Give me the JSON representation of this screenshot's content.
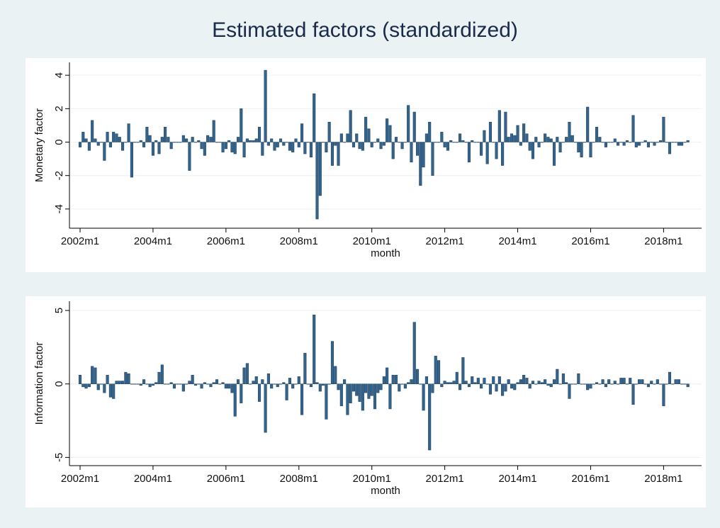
{
  "title": "Estimated factors (standardized)",
  "chart_data": [
    {
      "type": "bar",
      "ylabel": "Monetary factor",
      "xlabel": "month",
      "color": "#34648c",
      "ylim": [
        -5.15,
        4.77
      ],
      "yticks": [
        -4,
        -2,
        0,
        2,
        4
      ],
      "grid": true,
      "categories": [
        "2002m1",
        null,
        null,
        null,
        null,
        null,
        null,
        null,
        null,
        null,
        null,
        null,
        null,
        null,
        null,
        null,
        null,
        null,
        null,
        null,
        null,
        null,
        null,
        null,
        "2004m1",
        null,
        null,
        null,
        null,
        null,
        null,
        null,
        null,
        null,
        null,
        null,
        null,
        null,
        null,
        null,
        null,
        null,
        null,
        null,
        null,
        null,
        null,
        null,
        "2006m1",
        null,
        null,
        null,
        null,
        null,
        null,
        null,
        null,
        null,
        null,
        null,
        null,
        null,
        null,
        null,
        null,
        null,
        null,
        null,
        null,
        null,
        null,
        null,
        "2008m1",
        null,
        null,
        null,
        null,
        null,
        null,
        null,
        null,
        null,
        null,
        null,
        null,
        null,
        null,
        null,
        null,
        null,
        null,
        null,
        null,
        null,
        null,
        null,
        "2010m1",
        null,
        null,
        null,
        null,
        null,
        null,
        null,
        null,
        null,
        null,
        null,
        null,
        null,
        null,
        null,
        null,
        null,
        null,
        null,
        null,
        null,
        null,
        null,
        "2012m1",
        null,
        null,
        null,
        null,
        null,
        null,
        null,
        null,
        null,
        null,
        null,
        null,
        null,
        null,
        null,
        null,
        null,
        null,
        null,
        null,
        null,
        null,
        null,
        "2014m1",
        null,
        null,
        null,
        null,
        null,
        null,
        null,
        null,
        null,
        null,
        null,
        null,
        null,
        null,
        null,
        null,
        null,
        null,
        null,
        null,
        null,
        null,
        null,
        "2016m1",
        null,
        null,
        null,
        null,
        null,
        null,
        null,
        null,
        null,
        null,
        null,
        null,
        null,
        null,
        null,
        null,
        null,
        null,
        null,
        null,
        null,
        null,
        null,
        "2018m1",
        null,
        null,
        null,
        null,
        null,
        null,
        null,
        null
      ],
      "values": [
        -0.3,
        0.6,
        0.2,
        -0.5,
        1.3,
        0.2,
        -0.2,
        0,
        -1.1,
        0.6,
        -0.3,
        0.6,
        0.5,
        0.3,
        -0.5,
        0,
        1.1,
        -2.1,
        0,
        0,
        0.1,
        -0.3,
        0.9,
        0.4,
        -0.8,
        0.1,
        -0.7,
        0.3,
        0.9,
        0.3,
        -0.4,
        0,
        0,
        0,
        0.4,
        0.2,
        -1.7,
        0.3,
        0,
        0.1,
        -0.4,
        -0.8,
        0.4,
        0.3,
        1.3,
        0,
        0,
        -0.6,
        -0.4,
        0.1,
        -0.6,
        -0.7,
        0.3,
        2.0,
        -0.9,
        0.2,
        0.1,
        0.1,
        0.2,
        0.9,
        -0.8,
        4.3,
        -0.2,
        0.2,
        -0.5,
        -0.3,
        0.2,
        -0.2,
        0,
        -0.5,
        -0.6,
        0.2,
        -0.3,
        1.1,
        -0.7,
        0,
        -0.9,
        2.9,
        -4.6,
        -3.2,
        0,
        -0.6,
        1.2,
        -1.4,
        -0.2,
        -1.4,
        0.5,
        0,
        0.5,
        1.9,
        -0.3,
        0.5,
        -0.4,
        -0.5,
        1.5,
        0.8,
        -0.3,
        0,
        0.2,
        -0.4,
        -0.2,
        1.4,
        1.0,
        -1.0,
        0.3,
        0,
        -0.4,
        0,
        2.2,
        -1.2,
        1.8,
        -0.8,
        -2.6,
        -1.5,
        0.5,
        1.2,
        -2.0,
        0,
        0,
        0.6,
        -0.3,
        -0.5,
        0.1,
        0,
        0,
        0.5,
        0.1,
        0,
        -1.2,
        0.1,
        0,
        0,
        -0.8,
        0.7,
        -1.3,
        1.2,
        0,
        -1.0,
        1.9,
        -1.4,
        1.8,
        0.3,
        0.5,
        0.4,
        1.0,
        -0.2,
        1.1,
        0.5,
        -0.5,
        -1.0,
        0.3,
        -0.3,
        0,
        0.5,
        0.3,
        0.2,
        -1.4,
        0.3,
        -0.6,
        0,
        0.3,
        1.2,
        0.4,
        0,
        -0.6,
        -0.9,
        0,
        2.1,
        -0.9,
        0,
        0.9,
        0.3,
        0,
        -0.3,
        0,
        0,
        0.2,
        -0.2,
        0,
        -0.2,
        0.1,
        0,
        1.6,
        -0.3,
        -0.2,
        0,
        0.1,
        -0.3,
        0,
        -0.2,
        0,
        0.1,
        1.5,
        0,
        -0.7,
        0,
        0,
        -0.2,
        -0.2,
        0,
        0.1
      ]
    },
    {
      "type": "bar",
      "ylabel": "Information factor",
      "xlabel": "month",
      "color": "#34648c",
      "ylim": [
        -5.56,
        5.63
      ],
      "yticks": [
        -5,
        0,
        5
      ],
      "grid": true,
      "categories": [
        "2002m1",
        null,
        null,
        null,
        null,
        null,
        null,
        null,
        null,
        null,
        null,
        null,
        null,
        null,
        null,
        null,
        null,
        null,
        null,
        null,
        null,
        null,
        null,
        null,
        "2004m1",
        null,
        null,
        null,
        null,
        null,
        null,
        null,
        null,
        null,
        null,
        null,
        null,
        null,
        null,
        null,
        null,
        null,
        null,
        null,
        null,
        null,
        null,
        null,
        "2006m1",
        null,
        null,
        null,
        null,
        null,
        null,
        null,
        null,
        null,
        null,
        null,
        null,
        null,
        null,
        null,
        null,
        null,
        null,
        null,
        null,
        null,
        null,
        null,
        "2008m1",
        null,
        null,
        null,
        null,
        null,
        null,
        null,
        null,
        null,
        null,
        null,
        null,
        null,
        null,
        null,
        null,
        null,
        null,
        null,
        null,
        null,
        null,
        null,
        "2010m1",
        null,
        null,
        null,
        null,
        null,
        null,
        null,
        null,
        null,
        null,
        null,
        null,
        null,
        null,
        null,
        null,
        null,
        null,
        null,
        null,
        null,
        null,
        null,
        "2012m1",
        null,
        null,
        null,
        null,
        null,
        null,
        null,
        null,
        null,
        null,
        null,
        null,
        null,
        null,
        null,
        null,
        null,
        null,
        null,
        null,
        null,
        null,
        null,
        "2014m1",
        null,
        null,
        null,
        null,
        null,
        null,
        null,
        null,
        null,
        null,
        null,
        null,
        null,
        null,
        null,
        null,
        null,
        null,
        null,
        null,
        null,
        null,
        null,
        "2016m1",
        null,
        null,
        null,
        null,
        null,
        null,
        null,
        null,
        null,
        null,
        null,
        null,
        null,
        null,
        null,
        null,
        null,
        null,
        null,
        null,
        null,
        null,
        null,
        "2018m1",
        null,
        null,
        null,
        null,
        null,
        null,
        null,
        null
      ],
      "values": [
        0.6,
        -0.2,
        -0.3,
        -0.2,
        1.2,
        1.1,
        -0.4,
        0,
        -0.6,
        0.6,
        -0.9,
        -1.0,
        0.2,
        0.2,
        0.2,
        0.8,
        0.7,
        0,
        0,
        0,
        -0.1,
        0.3,
        0,
        -0.2,
        -0.1,
        0.1,
        0.8,
        1.3,
        0,
        0,
        0.1,
        -0.3,
        0,
        0,
        -0.5,
        0,
        0.2,
        0.6,
        -0.1,
        0,
        -0.3,
        0.1,
        0,
        -0.2,
        0.1,
        0.3,
        0,
        0.1,
        -0.3,
        -0.3,
        -0.6,
        -2.2,
        0.3,
        -1.3,
        1.1,
        1.4,
        0,
        0.2,
        0.5,
        -1.2,
        0.3,
        -3.3,
        0.7,
        -0.3,
        0,
        -0.2,
        0,
        0.1,
        -1.1,
        0.4,
        -0.3,
        0,
        0.5,
        -2.1,
        2.1,
        0,
        -0.2,
        4.7,
        0.1,
        -0.5,
        -0.1,
        -2.4,
        0,
        2.9,
        1.2,
        -0.4,
        -1.5,
        0.3,
        -2.1,
        -1.3,
        -0.5,
        -0.8,
        -1.2,
        -1.8,
        -0.6,
        -1.0,
        -0.8,
        -1.7,
        -0.6,
        -0.4,
        0.5,
        1.1,
        -1.7,
        0.6,
        0.6,
        -0.5,
        0,
        -0.3,
        0.1,
        0.3,
        4.2,
        1.0,
        0,
        -1.8,
        0.5,
        -4.5,
        -0.6,
        1.9,
        1.6,
        -0.2,
        0.2,
        0.1,
        0.1,
        0.2,
        0.8,
        -0.4,
        1.8,
        0.2,
        -0.2,
        0.5,
        0.1,
        0.4,
        -0.3,
        0.4,
        0,
        -0.7,
        0.5,
        -0.5,
        0.5,
        -0.8,
        -0.5,
        0.3,
        -0.3,
        -0.4,
        0.1,
        0.3,
        0.6,
        0.4,
        -0.3,
        0.2,
        0,
        0.2,
        0.1,
        0.3,
        -0.1,
        -0.2,
        0.3,
        1.0,
        0,
        0.7,
        0.1,
        -1.0,
        0,
        0,
        0.7,
        0,
        0,
        -0.4,
        -0.3,
        0,
        0.1,
        0,
        0.3,
        -0.2,
        0.3,
        0,
        0.2,
        0,
        0.4,
        0.4,
        0,
        0.4,
        -1.4,
        0,
        0.3,
        0.3,
        0,
        -0.2,
        0.2,
        0,
        0.3,
        0,
        -1.5,
        0,
        0.8,
        0,
        0.3,
        0.3,
        0,
        0,
        -0.2
      ]
    }
  ]
}
